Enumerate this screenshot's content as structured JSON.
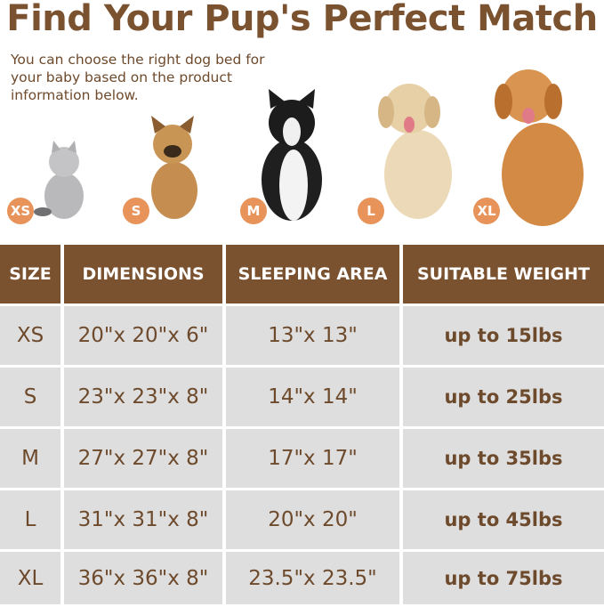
{
  "title": "Find Your Pup's Perfect Match",
  "subtitle": "You can choose the right dog bed for your baby based on the product information below.",
  "colors": {
    "brown": "#7a5230",
    "badge": "#e8935a",
    "cell": "#dedede"
  },
  "pets": [
    {
      "size": "XS",
      "animal": "cat"
    },
    {
      "size": "S",
      "animal": "french-bulldog"
    },
    {
      "size": "M",
      "animal": "border-collie"
    },
    {
      "size": "L",
      "animal": "golden-retriever"
    },
    {
      "size": "XL",
      "animal": "golden-retriever-large"
    }
  ],
  "table": {
    "headers": [
      "SIZE",
      "DIMENSIONS",
      "SLEEPING AREA",
      "SUITABLE WEIGHT"
    ],
    "rows": [
      [
        "XS",
        "20\"x 20\"x 6\"",
        "13\"x 13\"",
        "up to 15lbs"
      ],
      [
        "S",
        "23\"x 23\"x 8\"",
        "14\"x 14\"",
        "up to 25lbs"
      ],
      [
        "M",
        "27\"x 27\"x 8\"",
        "17\"x 17\"",
        "up to 35lbs"
      ],
      [
        "L",
        "31\"x 31\"x 8\"",
        "20\"x 20\"",
        "up to 45lbs"
      ],
      [
        "XL",
        "36\"x 36\"x 8\"",
        "23.5\"x 23.5\"",
        "up to 75lbs"
      ]
    ]
  }
}
